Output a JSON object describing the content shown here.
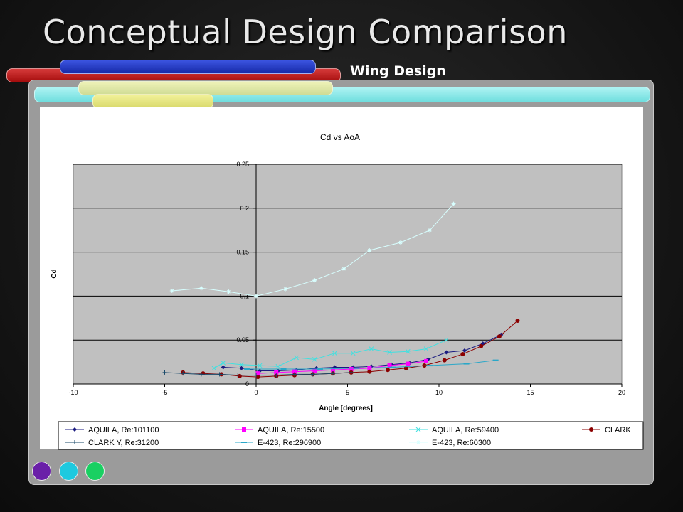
{
  "slide": {
    "title": "Conceptual Design Comparison",
    "subtitle": "Wing Design"
  },
  "colors": {
    "plot_background": "#c0c0c0",
    "panel_background": "#9b9b9b",
    "bar_red": "#c41f1f",
    "bar_blue": "#2238c8",
    "bar_cyan": "#8ee8e8",
    "bar_yellow": "#e6e67a",
    "dot_purple": "#6a1fa8",
    "dot_cyan": "#1ec9df",
    "dot_green": "#19d062"
  },
  "chart_data": {
    "type": "line",
    "title": "Cd vs AoA",
    "xlabel": "Angle [degrees]",
    "ylabel": "Cd",
    "xlim": [
      -10,
      20
    ],
    "ylim": [
      0,
      0.25
    ],
    "xticks": [
      "-10",
      "-5",
      "0",
      "5",
      "10",
      "15",
      "20"
    ],
    "yticks": [
      "0",
      "0.05",
      "0.1",
      "0.15",
      "0.2",
      "0.25"
    ],
    "grid": "horizontal",
    "legend_position": "bottom",
    "series": [
      {
        "name": "AQUILA, Re:101100",
        "color": "#1a1a80",
        "marker": "diamond",
        "x": [
          -1.8,
          -0.8,
          0.2,
          1.2,
          2.2,
          3.3,
          4.3,
          5.3,
          6.3,
          7.4,
          8.4,
          9.4,
          10.4,
          11.4,
          12.4,
          13.4
        ],
        "y": [
          0.019,
          0.018,
          0.015,
          0.015,
          0.016,
          0.018,
          0.019,
          0.019,
          0.02,
          0.022,
          0.024,
          0.028,
          0.036,
          0.038,
          0.046,
          0.056
        ]
      },
      {
        "name": "AQUILA, Re:15500",
        "color": "#ff00ff",
        "marker": "square",
        "x": [
          0.1,
          1.1,
          2.1,
          3.2,
          4.2,
          5.2,
          6.2,
          7.3,
          8.3,
          9.3
        ],
        "y": [
          0.012,
          0.013,
          0.014,
          0.015,
          0.016,
          0.017,
          0.018,
          0.021,
          0.023,
          0.026
        ]
      },
      {
        "name": "AQUILA, Re:59400",
        "color": "#40e0e0",
        "marker": "x",
        "x": [
          -2.3,
          -1.8,
          -0.8,
          0.2,
          1.2,
          2.2,
          3.2,
          4.3,
          5.3,
          6.3,
          7.3,
          8.3,
          9.3,
          10.4
        ],
        "y": [
          0.018,
          0.024,
          0.022,
          0.021,
          0.02,
          0.03,
          0.028,
          0.035,
          0.035,
          0.04,
          0.036,
          0.037,
          0.04,
          0.05
        ]
      },
      {
        "name": "CLARK",
        "color": "#8b0000",
        "marker": "circle",
        "x": [
          -4.0,
          -2.9,
          -1.9,
          -0.9,
          0.1,
          1.1,
          2.1,
          3.1,
          4.2,
          5.2,
          6.2,
          7.2,
          8.2,
          9.2,
          10.3,
          11.3,
          12.3,
          13.3,
          14.3
        ],
        "y": [
          0.013,
          0.012,
          0.011,
          0.009,
          0.008,
          0.009,
          0.01,
          0.011,
          0.012,
          0.013,
          0.014,
          0.016,
          0.018,
          0.021,
          0.027,
          0.034,
          0.043,
          0.054,
          0.072
        ]
      },
      {
        "name": "CLARK Y, Re:31200",
        "color": "#1a4a6a",
        "marker": "plus",
        "x": [
          -5.0,
          -4.0,
          -3.0,
          -2.0,
          -1.0,
          0.0,
          1.1,
          2.1,
          3.1,
          4.2,
          5.2
        ],
        "y": [
          0.013,
          0.012,
          0.011,
          0.011,
          0.01,
          0.01,
          0.01,
          0.011,
          0.011,
          0.012,
          0.013
        ]
      },
      {
        "name": "E-423, Re:296900",
        "color": "#2aa7c8",
        "marker": "dash",
        "x": [
          -0.5,
          1.5,
          3.5,
          5.5,
          7.5,
          9.5,
          11.5,
          13.1
        ],
        "y": [
          0.017,
          0.017,
          0.017,
          0.018,
          0.019,
          0.021,
          0.023,
          0.027
        ]
      },
      {
        "name": "E-423, Re:60300",
        "color": "#d8ffff",
        "marker": "star",
        "x": [
          -4.6,
          -3.0,
          -1.5,
          0.0,
          1.6,
          3.2,
          4.8,
          6.2,
          7.9,
          9.5,
          10.8
        ],
        "y": [
          0.106,
          0.109,
          0.105,
          0.1,
          0.108,
          0.118,
          0.131,
          0.152,
          0.161,
          0.175,
          0.205
        ]
      }
    ]
  }
}
